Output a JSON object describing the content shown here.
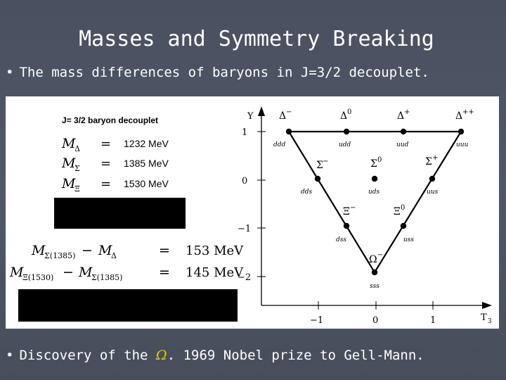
{
  "slide": {
    "title": "Masses and Symmetry Breaking",
    "bullet1": "The mass differences of baryons in J=3/2 decouplet.",
    "bullet2_before": "Discovery of the ",
    "bullet2_omega": "Ω",
    "bullet2_after": ". 1969 Nobel prize to Gell-Mann.",
    "bullet_glyph": "•"
  },
  "left_panel": {
    "heading": "J= 3/2 baryon decouplet",
    "masses": [
      {
        "symbol": "M",
        "sub": "Δ",
        "eq": "=",
        "value": "1232 MeV"
      },
      {
        "symbol": "M",
        "sub": "Σ",
        "eq": "=",
        "value": "1385 MeV"
      },
      {
        "symbol": "M",
        "sub": "Ξ",
        "eq": "=",
        "value": "1530 MeV"
      }
    ],
    "differences": [
      {
        "lhs_a": "M",
        "lhs_a_sub": "Σ(1385)",
        "minus": "−",
        "lhs_b": "M",
        "lhs_b_sub": "Δ",
        "eq": "=",
        "value": "153 MeV"
      },
      {
        "lhs_a": "M",
        "lhs_a_sub": "Ξ(1530)",
        "minus": "−",
        "lhs_b": "M",
        "lhs_b_sub": "Σ(1385)",
        "eq": "=",
        "value": "145 MeV"
      }
    ]
  },
  "diagram": {
    "y_axis_label": "Y",
    "x_axis_label": "T",
    "x_axis_sub": "3",
    "y_ticks": [
      "1",
      "0",
      "−1",
      "−2"
    ],
    "x_ticks": [
      "−1",
      "0",
      "1"
    ],
    "particles": [
      {
        "name": "Δ",
        "sup": "−",
        "quarks": "ddd"
      },
      {
        "name": "Δ",
        "sup": "0",
        "quarks": "udd"
      },
      {
        "name": "Δ",
        "sup": "+",
        "quarks": "uud"
      },
      {
        "name": "Δ",
        "sup": "++",
        "quarks": "uuu"
      },
      {
        "name": "Σ",
        "sup": "−",
        "quarks": "dds"
      },
      {
        "name": "Σ",
        "sup": "0",
        "quarks": "uds"
      },
      {
        "name": "Σ",
        "sup": "+",
        "quarks": "uus"
      },
      {
        "name": "Ξ",
        "sup": "−",
        "quarks": "dss"
      },
      {
        "name": "Ξ",
        "sup": "0",
        "quarks": "uss"
      },
      {
        "name": "Ω",
        "sup": "−",
        "quarks": "sss"
      }
    ]
  },
  "colors": {
    "background": "#4d5362",
    "text": "#ffffff",
    "omega_accent": "#e8c800",
    "panel": "#ffffff",
    "ink": "#000000"
  }
}
